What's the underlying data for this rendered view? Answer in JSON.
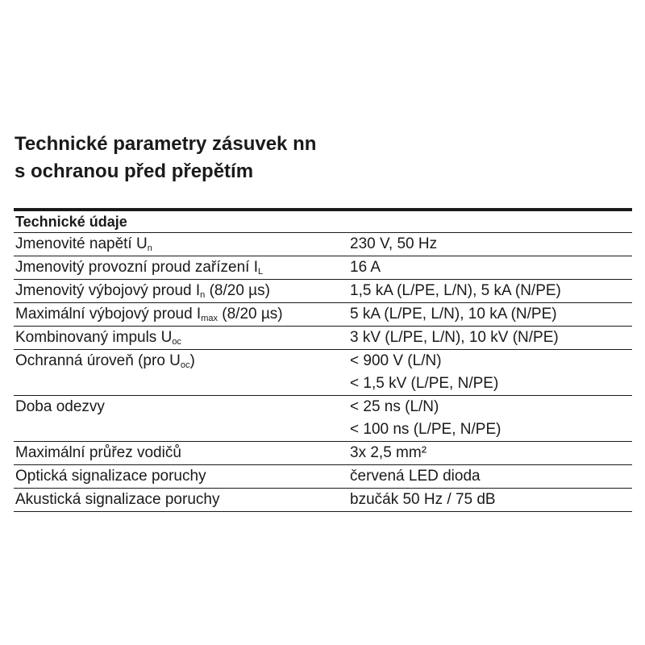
{
  "title": {
    "line1": "Technické parametry zásuvek nn",
    "line2": "s ochranou před přepětím"
  },
  "table": {
    "header": "Technické údaje",
    "rows": [
      {
        "param": "Jmenovité napětí U",
        "sub": "n",
        "param_suffix": "",
        "value": "230 V, 50 Hz"
      },
      {
        "param": "Jmenovitý provozní proud zařízení I",
        "sub": "L",
        "param_suffix": "",
        "value": "16 A"
      },
      {
        "param": "Jmenovitý výbojový proud I",
        "sub": "n",
        "param_suffix": " (8/20 µs)",
        "value": "1,5 kA (L/PE, L/N), 5 kA (N/PE)"
      },
      {
        "param": "Maximální výbojový proud I",
        "sub": "max",
        "param_suffix": " (8/20 µs)",
        "value": "5 kA (L/PE, L/N), 10 kA (N/PE)"
      },
      {
        "param": "Kombinovaný impuls U",
        "sub": "oc",
        "param_suffix": "",
        "value": "3 kV (L/PE, L/N), 10 kV (N/PE)"
      },
      {
        "param": "Ochranná úroveň (pro U",
        "sub": "oc",
        "param_suffix": ")",
        "value": "< 900 V (L/N)"
      },
      {
        "param": "",
        "sub": "",
        "param_suffix": "",
        "value": "< 1,5 kV (L/PE, N/PE)"
      },
      {
        "param": "Doba odezvy",
        "sub": "",
        "param_suffix": "",
        "value": "< 25 ns (L/N)"
      },
      {
        "param": "",
        "sub": "",
        "param_suffix": "",
        "value": "< 100 ns (L/PE, N/PE)"
      },
      {
        "param": "Maximální průřez vodičů",
        "sub": "",
        "param_suffix": "",
        "value": "3x 2,5 mm²"
      },
      {
        "param": "Optická signalizace poruchy",
        "sub": "",
        "param_suffix": "",
        "value": "červená LED dioda"
      },
      {
        "param": "Akustická signalizace poruchy",
        "sub": "",
        "param_suffix": "",
        "value": "bzučák 50 Hz / 75 dB"
      }
    ]
  }
}
